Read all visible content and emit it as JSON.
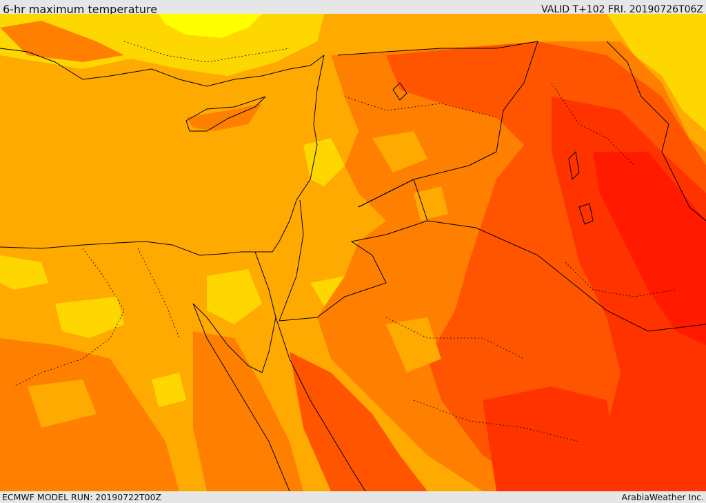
{
  "header": {
    "title": "6-hr maximum temperature",
    "valid_time": "VALID T+102 FRI. 20190726T06Z"
  },
  "footer": {
    "model_run": "ECMWF MODEL RUN: 20190722T00Z",
    "credit": "ArabiaWeather Inc."
  },
  "map": {
    "colors": {
      "yellow": "#ffff00",
      "gold": "#ffd700",
      "amber": "#ffaa00",
      "orange": "#ff8000",
      "dark_orange": "#ff5500",
      "red": "#ff3300",
      "hot_red": "#ff1a00",
      "boundary": "#000000"
    }
  }
}
